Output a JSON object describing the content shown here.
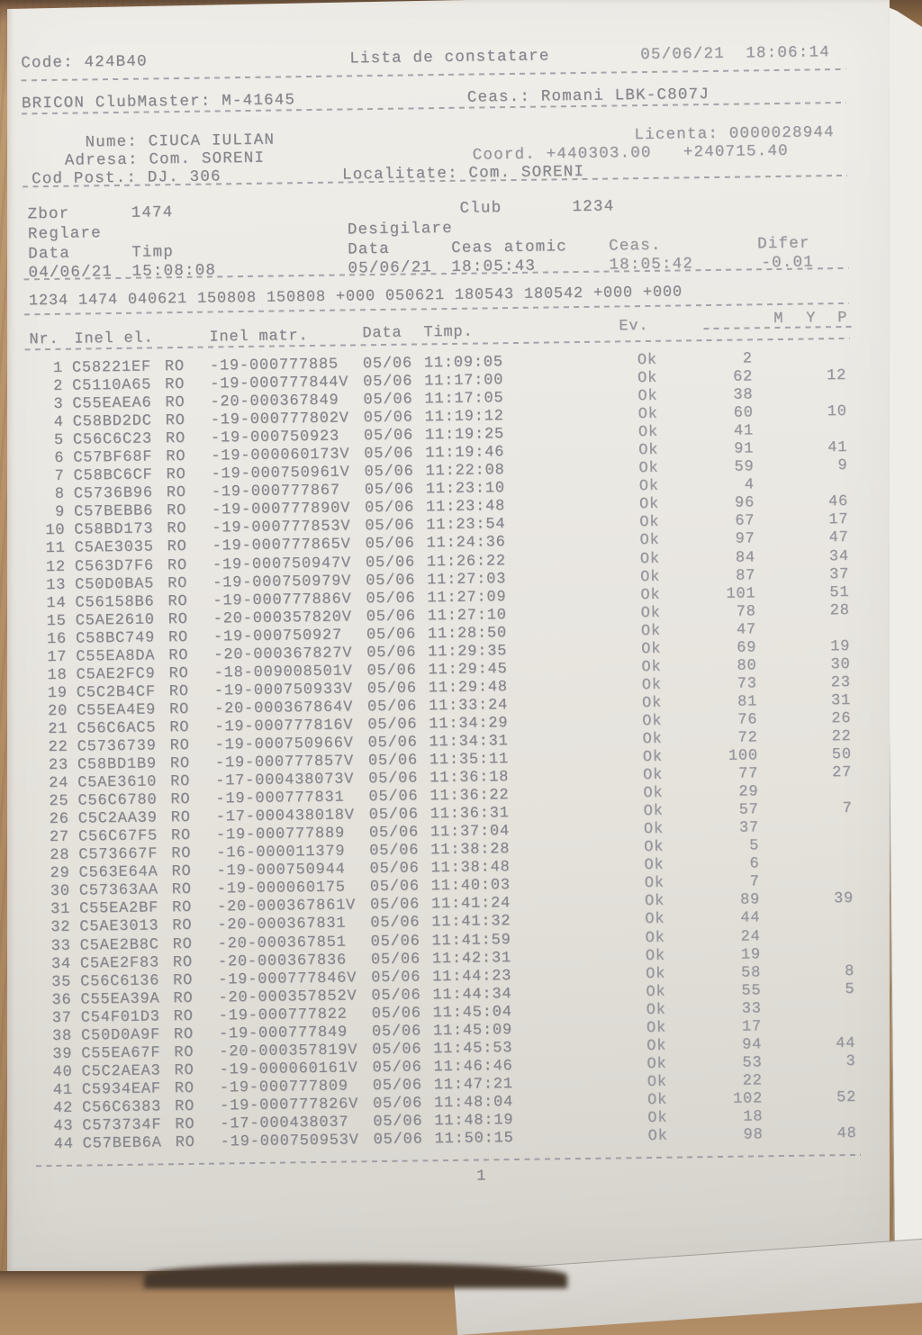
{
  "colors": {
    "paper": "#eae7e2",
    "ink": "#85858c",
    "wood": "#b08c64"
  },
  "header": {
    "code": "Code: 424B40",
    "title": "Lista de constatare",
    "datetime": "05/06/21  18:06:14",
    "device": "BRICON ClubMaster: M-41645",
    "clock": "Ceas.: Romani LBK-C807J",
    "name": "Nume: CIUCA IULIAN",
    "licence": "Licenta: 0000028944",
    "address": "Adresa: Com. SORENI",
    "coord": "Coord. +440303.00   +240715.40",
    "postcode": "Cod Post.: DJ. 306",
    "locality": "Localitate: Com. SORENI"
  },
  "flight": {
    "zbor_label": "Zbor",
    "zbor_value": "1474",
    "club_label": "Club",
    "club_value": "1234",
    "reglare_label": "Reglare",
    "desigilare_label": "Desigilare",
    "reglare_data_label": "Data",
    "reglare_timp_label": "Timp",
    "desig_data_label": "Data",
    "desig_ceas_atomic_label": "Ceas atomic",
    "desig_ceas_label": "Ceas.",
    "desig_difer_label": "Difer",
    "reglare_data": "04/06/21",
    "reglare_timp": "15:08:08",
    "desig_data": "05/06/21",
    "desig_ceas_atomic": "18:05:43",
    "desig_ceas": "18:05:42",
    "desig_difer": "-0.01"
  },
  "raw_line": "1234 1474 040621 150808 150808 +000 050621 180543 180542 +000 +000",
  "table": {
    "headers": {
      "nr": "Nr.",
      "inel_el": "Inel el.",
      "inel_matr": "Inel matr.",
      "data": "Data",
      "timp": "Timp.",
      "ev": "Ev.",
      "m": "M",
      "y": "Y",
      "p": "P"
    },
    "rows": [
      {
        "nr": "1",
        "ring": "C58221EF",
        "country": "RO",
        "matr": "-19-000777885",
        "date": "05/06",
        "time": "11:09:05",
        "ev": "Ok",
        "m": "2",
        "p": ""
      },
      {
        "nr": "2",
        "ring": "C5110A65",
        "country": "RO",
        "matr": "-19-000777844V",
        "date": "05/06",
        "time": "11:17:00",
        "ev": "Ok",
        "m": "62",
        "p": "12"
      },
      {
        "nr": "3",
        "ring": "C55EAEA6",
        "country": "RO",
        "matr": "-20-000367849",
        "date": "05/06",
        "time": "11:17:05",
        "ev": "Ok",
        "m": "38",
        "p": ""
      },
      {
        "nr": "4",
        "ring": "C58BD2DC",
        "country": "RO",
        "matr": "-19-000777802V",
        "date": "05/06",
        "time": "11:19:12",
        "ev": "Ok",
        "m": "60",
        "p": "10"
      },
      {
        "nr": "5",
        "ring": "C56C6C23",
        "country": "RO",
        "matr": "-19-000750923",
        "date": "05/06",
        "time": "11:19:25",
        "ev": "Ok",
        "m": "41",
        "p": ""
      },
      {
        "nr": "6",
        "ring": "C57BF68F",
        "country": "RO",
        "matr": "-19-000060173V",
        "date": "05/06",
        "time": "11:19:46",
        "ev": "Ok",
        "m": "91",
        "p": "41"
      },
      {
        "nr": "7",
        "ring": "C58BC6CF",
        "country": "RO",
        "matr": "-19-000750961V",
        "date": "05/06",
        "time": "11:22:08",
        "ev": "Ok",
        "m": "59",
        "p": "9"
      },
      {
        "nr": "8",
        "ring": "C5736B96",
        "country": "RO",
        "matr": "-19-000777867",
        "date": "05/06",
        "time": "11:23:10",
        "ev": "Ok",
        "m": "4",
        "p": ""
      },
      {
        "nr": "9",
        "ring": "C57BEBB6",
        "country": "RO",
        "matr": "-19-000777890V",
        "date": "05/06",
        "time": "11:23:48",
        "ev": "Ok",
        "m": "96",
        "p": "46"
      },
      {
        "nr": "10",
        "ring": "C58BD173",
        "country": "RO",
        "matr": "-19-000777853V",
        "date": "05/06",
        "time": "11:23:54",
        "ev": "Ok",
        "m": "67",
        "p": "17"
      },
      {
        "nr": "11",
        "ring": "C5AE3035",
        "country": "RO",
        "matr": "-19-000777865V",
        "date": "05/06",
        "time": "11:24:36",
        "ev": "Ok",
        "m": "97",
        "p": "47"
      },
      {
        "nr": "12",
        "ring": "C563D7F6",
        "country": "RO",
        "matr": "-19-000750947V",
        "date": "05/06",
        "time": "11:26:22",
        "ev": "Ok",
        "m": "84",
        "p": "34"
      },
      {
        "nr": "13",
        "ring": "C50D0BA5",
        "country": "RO",
        "matr": "-19-000750979V",
        "date": "05/06",
        "time": "11:27:03",
        "ev": "Ok",
        "m": "87",
        "p": "37"
      },
      {
        "nr": "14",
        "ring": "C56158B6",
        "country": "RO",
        "matr": "-19-000777886V",
        "date": "05/06",
        "time": "11:27:09",
        "ev": "Ok",
        "m": "101",
        "p": "51"
      },
      {
        "nr": "15",
        "ring": "C5AE2610",
        "country": "RO",
        "matr": "-20-000357820V",
        "date": "05/06",
        "time": "11:27:10",
        "ev": "Ok",
        "m": "78",
        "p": "28"
      },
      {
        "nr": "16",
        "ring": "C58BC749",
        "country": "RO",
        "matr": "-19-000750927",
        "date": "05/06",
        "time": "11:28:50",
        "ev": "Ok",
        "m": "47",
        "p": ""
      },
      {
        "nr": "17",
        "ring": "C55EA8DA",
        "country": "RO",
        "matr": "-20-000367827V",
        "date": "05/06",
        "time": "11:29:35",
        "ev": "Ok",
        "m": "69",
        "p": "19"
      },
      {
        "nr": "18",
        "ring": "C5AE2FC9",
        "country": "RO",
        "matr": "-18-009008501V",
        "date": "05/06",
        "time": "11:29:45",
        "ev": "Ok",
        "m": "80",
        "p": "30"
      },
      {
        "nr": "19",
        "ring": "C5C2B4CF",
        "country": "RO",
        "matr": "-19-000750933V",
        "date": "05/06",
        "time": "11:29:48",
        "ev": "Ok",
        "m": "73",
        "p": "23"
      },
      {
        "nr": "20",
        "ring": "C55EA4E9",
        "country": "RO",
        "matr": "-20-000367864V",
        "date": "05/06",
        "time": "11:33:24",
        "ev": "Ok",
        "m": "81",
        "p": "31"
      },
      {
        "nr": "21",
        "ring": "C56C6AC5",
        "country": "RO",
        "matr": "-19-000777816V",
        "date": "05/06",
        "time": "11:34:29",
        "ev": "Ok",
        "m": "76",
        "p": "26"
      },
      {
        "nr": "22",
        "ring": "C5736739",
        "country": "RO",
        "matr": "-19-000750966V",
        "date": "05/06",
        "time": "11:34:31",
        "ev": "Ok",
        "m": "72",
        "p": "22"
      },
      {
        "nr": "23",
        "ring": "C58BD1B9",
        "country": "RO",
        "matr": "-19-000777857V",
        "date": "05/06",
        "time": "11:35:11",
        "ev": "Ok",
        "m": "100",
        "p": "50"
      },
      {
        "nr": "24",
        "ring": "C5AE3610",
        "country": "RO",
        "matr": "-17-000438073V",
        "date": "05/06",
        "time": "11:36:18",
        "ev": "Ok",
        "m": "77",
        "p": "27"
      },
      {
        "nr": "25",
        "ring": "C56C6780",
        "country": "RO",
        "matr": "-19-000777831",
        "date": "05/06",
        "time": "11:36:22",
        "ev": "Ok",
        "m": "29",
        "p": ""
      },
      {
        "nr": "26",
        "ring": "C5C2AA39",
        "country": "RO",
        "matr": "-17-000438018V",
        "date": "05/06",
        "time": "11:36:31",
        "ev": "Ok",
        "m": "57",
        "p": "7"
      },
      {
        "nr": "27",
        "ring": "C56C67F5",
        "country": "RO",
        "matr": "-19-000777889",
        "date": "05/06",
        "time": "11:37:04",
        "ev": "Ok",
        "m": "37",
        "p": ""
      },
      {
        "nr": "28",
        "ring": "C573667F",
        "country": "RO",
        "matr": "-16-000011379",
        "date": "05/06",
        "time": "11:38:28",
        "ev": "Ok",
        "m": "5",
        "p": ""
      },
      {
        "nr": "29",
        "ring": "C563E64A",
        "country": "RO",
        "matr": "-19-000750944",
        "date": "05/06",
        "time": "11:38:48",
        "ev": "Ok",
        "m": "6",
        "p": ""
      },
      {
        "nr": "30",
        "ring": "C57363AA",
        "country": "RO",
        "matr": "-19-000060175",
        "date": "05/06",
        "time": "11:40:03",
        "ev": "Ok",
        "m": "7",
        "p": ""
      },
      {
        "nr": "31",
        "ring": "C55EA2BF",
        "country": "RO",
        "matr": "-20-000367861V",
        "date": "05/06",
        "time": "11:41:24",
        "ev": "Ok",
        "m": "89",
        "p": "39"
      },
      {
        "nr": "32",
        "ring": "C5AE3013",
        "country": "RO",
        "matr": "-20-000367831",
        "date": "05/06",
        "time": "11:41:32",
        "ev": "Ok",
        "m": "44",
        "p": ""
      },
      {
        "nr": "33",
        "ring": "C5AE2B8C",
        "country": "RO",
        "matr": "-20-000367851",
        "date": "05/06",
        "time": "11:41:59",
        "ev": "Ok",
        "m": "24",
        "p": ""
      },
      {
        "nr": "34",
        "ring": "C5AE2F83",
        "country": "RO",
        "matr": "-20-000367836",
        "date": "05/06",
        "time": "11:42:31",
        "ev": "Ok",
        "m": "19",
        "p": ""
      },
      {
        "nr": "35",
        "ring": "C56C6136",
        "country": "RO",
        "matr": "-19-000777846V",
        "date": "05/06",
        "time": "11:44:23",
        "ev": "Ok",
        "m": "58",
        "p": "8"
      },
      {
        "nr": "36",
        "ring": "C55EA39A",
        "country": "RO",
        "matr": "-20-000357852V",
        "date": "05/06",
        "time": "11:44:34",
        "ev": "Ok",
        "m": "55",
        "p": "5"
      },
      {
        "nr": "37",
        "ring": "C54F01D3",
        "country": "RO",
        "matr": "-19-000777822",
        "date": "05/06",
        "time": "11:45:04",
        "ev": "Ok",
        "m": "33",
        "p": ""
      },
      {
        "nr": "38",
        "ring": "C50D0A9F",
        "country": "RO",
        "matr": "-19-000777849",
        "date": "05/06",
        "time": "11:45:09",
        "ev": "Ok",
        "m": "17",
        "p": ""
      },
      {
        "nr": "39",
        "ring": "C55EA67F",
        "country": "RO",
        "matr": "-20-000357819V",
        "date": "05/06",
        "time": "11:45:53",
        "ev": "Ok",
        "m": "94",
        "p": "44"
      },
      {
        "nr": "40",
        "ring": "C5C2AEA3",
        "country": "RO",
        "matr": "-19-000060161V",
        "date": "05/06",
        "time": "11:46:46",
        "ev": "Ok",
        "m": "53",
        "p": "3"
      },
      {
        "nr": "41",
        "ring": "C5934EAF",
        "country": "RO",
        "matr": "-19-000777809",
        "date": "05/06",
        "time": "11:47:21",
        "ev": "Ok",
        "m": "22",
        "p": ""
      },
      {
        "nr": "42",
        "ring": "C56C6383",
        "country": "RO",
        "matr": "-19-000777826V",
        "date": "05/06",
        "time": "11:48:04",
        "ev": "Ok",
        "m": "102",
        "p": "52"
      },
      {
        "nr": "43",
        "ring": "C573734F",
        "country": "RO",
        "matr": "-17-000438037",
        "date": "05/06",
        "time": "11:48:19",
        "ev": "Ok",
        "m": "18",
        "p": ""
      },
      {
        "nr": "44",
        "ring": "C57BEB6A",
        "country": "RO",
        "matr": "-19-000750953V",
        "date": "05/06",
        "time": "11:50:15",
        "ev": "Ok",
        "m": "98",
        "p": "48"
      }
    ]
  },
  "footer": {
    "page": "1"
  }
}
